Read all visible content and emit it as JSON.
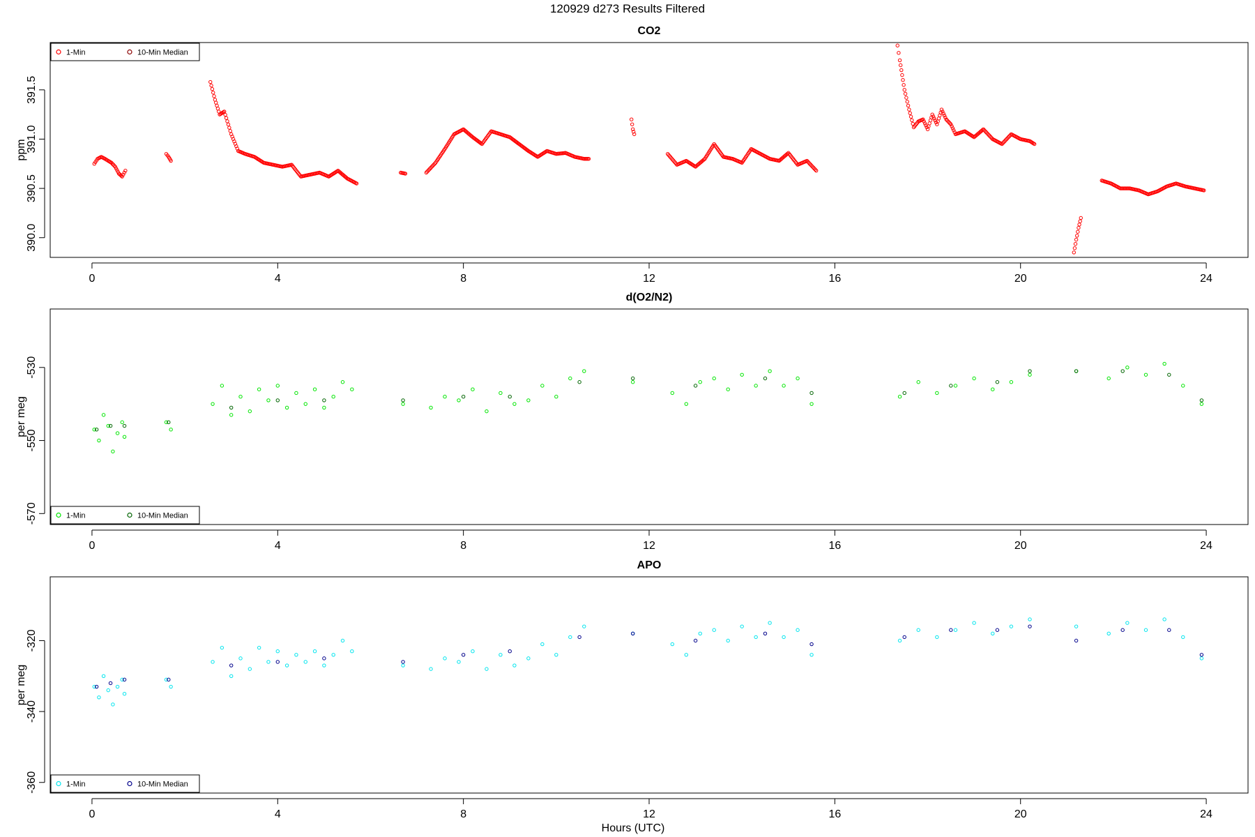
{
  "page_title": "120929   d273   Results Filtered",
  "x_axis_label": "Hours (UTC)",
  "colors": {
    "co2_raw": "#ff0000",
    "co2_median": "#8b0000",
    "o2_raw": "#00e600",
    "o2_median": "#006400",
    "apo_raw": "#00e5ee",
    "apo_median": "#00008b"
  },
  "chart_data": [
    {
      "type": "scatter",
      "title": "CO2",
      "ylabel": "ppm",
      "xlabel": "",
      "xlim": [
        -0.9,
        24.9
      ],
      "ylim": [
        389.8,
        391.98
      ],
      "xticks": [
        0,
        4,
        8,
        12,
        16,
        20,
        24
      ],
      "xtick_labels": [
        "0",
        "4",
        "8",
        "12",
        "16",
        "20",
        "24"
      ],
      "yticks": [
        390.0,
        390.5,
        391.0,
        391.5
      ],
      "ytick_labels": [
        "390.0",
        "390.5",
        "391.0",
        "391.5"
      ],
      "grid": false,
      "legend": {
        "position": "top-left",
        "entries": [
          "1-Min",
          "10-Min Median"
        ]
      },
      "series": [
        {
          "name": "1-Min",
          "segments": [
            {
              "x": [
                0.05,
                0.12,
                0.2,
                0.28,
                0.35,
                0.42,
                0.5,
                0.58,
                0.65,
                0.72
              ],
              "y": [
                390.75,
                390.8,
                390.82,
                390.8,
                390.78,
                390.76,
                390.72,
                390.65,
                390.62,
                390.68
              ]
            },
            {
              "x": [
                1.6,
                1.65,
                1.7
              ],
              "y": [
                390.85,
                390.82,
                390.78
              ]
            },
            {
              "x": [
                2.55,
                2.65,
                2.75,
                2.85,
                3.0,
                3.15,
                3.3,
                3.5,
                3.7,
                3.9,
                4.1,
                4.3,
                4.5,
                4.7,
                4.9,
                5.1,
                5.3,
                5.5,
                5.7
              ],
              "y": [
                391.58,
                391.4,
                391.25,
                391.28,
                391.05,
                390.88,
                390.85,
                390.82,
                390.76,
                390.74,
                390.72,
                390.74,
                390.62,
                390.64,
                390.66,
                390.62,
                390.68,
                390.6,
                390.55
              ]
            },
            {
              "x": [
                6.65,
                6.75
              ],
              "y": [
                390.66,
                390.65
              ]
            },
            {
              "x": [
                7.2,
                7.4,
                7.6,
                7.8,
                8.0,
                8.2,
                8.4,
                8.6,
                8.8,
                9.0,
                9.2,
                9.4,
                9.6,
                9.8,
                10.0,
                10.2,
                10.4,
                10.6,
                10.7
              ],
              "y": [
                390.66,
                390.76,
                390.9,
                391.05,
                391.1,
                391.02,
                390.95,
                391.08,
                391.05,
                391.02,
                390.95,
                390.88,
                390.82,
                390.88,
                390.85,
                390.86,
                390.82,
                390.8,
                390.8
              ]
            },
            {
              "x": [
                11.62,
                11.65,
                11.68
              ],
              "y": [
                391.2,
                391.1,
                391.05
              ]
            },
            {
              "x": [
                12.4,
                12.6,
                12.8,
                13.0,
                13.2,
                13.4,
                13.6,
                13.8,
                14.0,
                14.2,
                14.4,
                14.6,
                14.8,
                15.0,
                15.2,
                15.4,
                15.6
              ],
              "y": [
                390.85,
                390.74,
                390.78,
                390.72,
                390.8,
                390.95,
                390.82,
                390.8,
                390.76,
                390.9,
                390.85,
                390.8,
                390.78,
                390.86,
                390.74,
                390.78,
                390.68
              ]
            },
            {
              "x": [
                17.35,
                17.4,
                17.45,
                17.5,
                17.6,
                17.7,
                17.8,
                17.9,
                18.0,
                18.1,
                18.2,
                18.3,
                18.4,
                18.5,
                18.6,
                18.8,
                19.0,
                19.2,
                19.4,
                19.6,
                19.8,
                20.0,
                20.2,
                20.3
              ],
              "y": [
                391.95,
                391.8,
                391.65,
                391.5,
                391.3,
                391.12,
                391.18,
                391.2,
                391.1,
                391.25,
                391.15,
                391.3,
                391.2,
                391.15,
                391.05,
                391.08,
                391.02,
                391.1,
                391.0,
                390.95,
                391.05,
                391.0,
                390.98,
                390.95
              ]
            },
            {
              "x": [
                21.15,
                21.2,
                21.25,
                21.3
              ],
              "y": [
                389.85,
                389.98,
                390.1,
                390.2
              ]
            },
            {
              "x": [
                21.75,
                21.95,
                22.15,
                22.35,
                22.55,
                22.75,
                22.95,
                23.15,
                23.35,
                23.55,
                23.75,
                23.95
              ],
              "y": [
                390.58,
                390.55,
                390.5,
                390.5,
                390.48,
                390.44,
                390.47,
                390.52,
                390.55,
                390.52,
                390.5,
                390.48
              ]
            }
          ]
        },
        {
          "name": "10-Min Median",
          "x": [],
          "y": []
        }
      ]
    },
    {
      "type": "scatter",
      "title": "d(O2/N2)",
      "ylabel": "per meg",
      "xlabel": "",
      "xlim": [
        -0.9,
        24.9
      ],
      "ylim": [
        -573,
        -514
      ],
      "xticks": [
        0,
        4,
        8,
        12,
        16,
        20,
        24
      ],
      "xtick_labels": [
        "0",
        "4",
        "8",
        "12",
        "16",
        "20",
        "24"
      ],
      "yticks": [
        -570,
        -550,
        -530
      ],
      "ytick_labels": [
        "-570",
        "-550",
        "-530"
      ],
      "grid": false,
      "legend": {
        "position": "bottom-left",
        "entries": [
          "1-Min",
          "10-Min Median"
        ]
      },
      "series": [
        {
          "name": "1-Min",
          "x": [
            0.05,
            0.15,
            0.25,
            0.35,
            0.45,
            0.55,
            0.65,
            0.7,
            1.6,
            1.7,
            2.6,
            2.8,
            3.0,
            3.2,
            3.4,
            3.6,
            3.8,
            4.0,
            4.2,
            4.4,
            4.6,
            4.8,
            5.0,
            5.2,
            5.4,
            5.6,
            6.7,
            7.3,
            7.6,
            7.9,
            8.2,
            8.5,
            8.8,
            9.1,
            9.4,
            9.7,
            10.0,
            10.3,
            10.6,
            11.65,
            12.5,
            12.8,
            13.1,
            13.4,
            13.7,
            14.0,
            14.3,
            14.6,
            14.9,
            15.2,
            15.5,
            17.4,
            17.8,
            18.2,
            18.6,
            19.0,
            19.4,
            19.8,
            20.2,
            21.2,
            21.9,
            22.3,
            22.7,
            23.1,
            23.5,
            23.9
          ],
          "y": [
            -547,
            -550,
            -543,
            -546,
            -553,
            -548,
            -545,
            -549,
            -545,
            -547,
            -540,
            -535,
            -543,
            -538,
            -542,
            -536,
            -539,
            -535,
            -541,
            -537,
            -540,
            -536,
            -541,
            -538,
            -534,
            -536,
            -540,
            -541,
            -538,
            -539,
            -536,
            -542,
            -537,
            -540,
            -539,
            -535,
            -538,
            -533,
            -531,
            -534,
            -537,
            -540,
            -534,
            -533,
            -536,
            -532,
            -535,
            -531,
            -535,
            -533,
            -540,
            -538,
            -534,
            -537,
            -535,
            -533,
            -536,
            -534,
            -532,
            -531,
            -533,
            -530,
            -532,
            -529,
            -535,
            -540
          ]
        },
        {
          "name": "10-Min Median",
          "x": [
            0.1,
            0.4,
            0.7,
            1.65,
            3.0,
            4.0,
            5.0,
            6.7,
            8.0,
            9.0,
            10.5,
            11.65,
            13.0,
            14.5,
            15.5,
            17.5,
            18.5,
            19.5,
            20.2,
            21.2,
            22.2,
            23.2,
            23.9
          ],
          "y": [
            -547,
            -546,
            -546,
            -545,
            -541,
            -539,
            -539,
            -539,
            -538,
            -538,
            -534,
            -533,
            -535,
            -533,
            -537,
            -537,
            -535,
            -534,
            -531,
            -531,
            -531,
            -532,
            -539
          ]
        }
      ]
    },
    {
      "type": "scatter",
      "title": "APO",
      "ylabel": "per meg",
      "xlabel": "Hours (UTC)",
      "xlim": [
        -0.9,
        24.9
      ],
      "ylim": [
        -363,
        -302
      ],
      "xticks": [
        0,
        4,
        8,
        12,
        16,
        20,
        24
      ],
      "xtick_labels": [
        "0",
        "4",
        "8",
        "12",
        "16",
        "20",
        "24"
      ],
      "yticks": [
        -360,
        -340,
        -320
      ],
      "ytick_labels": [
        "-360",
        "-340",
        "-320"
      ],
      "grid": false,
      "legend": {
        "position": "bottom-left",
        "entries": [
          "1-Min",
          "10-Min Median"
        ]
      },
      "series": [
        {
          "name": "1-Min",
          "x": [
            0.05,
            0.15,
            0.25,
            0.35,
            0.45,
            0.55,
            0.65,
            0.7,
            1.6,
            1.7,
            2.6,
            2.8,
            3.0,
            3.2,
            3.4,
            3.6,
            3.8,
            4.0,
            4.2,
            4.4,
            4.6,
            4.8,
            5.0,
            5.2,
            5.4,
            5.6,
            6.7,
            7.3,
            7.6,
            7.9,
            8.2,
            8.5,
            8.8,
            9.1,
            9.4,
            9.7,
            10.0,
            10.3,
            10.6,
            11.65,
            12.5,
            12.8,
            13.1,
            13.4,
            13.7,
            14.0,
            14.3,
            14.6,
            14.9,
            15.2,
            15.5,
            17.4,
            17.8,
            18.2,
            18.6,
            19.0,
            19.4,
            19.8,
            20.2,
            21.2,
            21.9,
            22.3,
            22.7,
            23.1,
            23.5,
            23.9
          ],
          "y": [
            -333,
            -336,
            -330,
            -334,
            -338,
            -333,
            -331,
            -335,
            -331,
            -333,
            -326,
            -322,
            -330,
            -325,
            -328,
            -322,
            -326,
            -323,
            -327,
            -324,
            -326,
            -323,
            -327,
            -324,
            -320,
            -323,
            -327,
            -328,
            -325,
            -326,
            -323,
            -328,
            -324,
            -327,
            -325,
            -321,
            -324,
            -319,
            -316,
            -318,
            -321,
            -324,
            -318,
            -317,
            -320,
            -316,
            -319,
            -315,
            -319,
            -317,
            -324,
            -320,
            -317,
            -319,
            -317,
            -315,
            -318,
            -316,
            -314,
            -316,
            -318,
            -315,
            -317,
            -314,
            -319,
            -325
          ]
        },
        {
          "name": "10-Min Median",
          "x": [
            0.1,
            0.4,
            0.7,
            1.65,
            3.0,
            4.0,
            5.0,
            6.7,
            8.0,
            9.0,
            10.5,
            11.65,
            13.0,
            14.5,
            15.5,
            17.5,
            18.5,
            19.5,
            20.2,
            21.2,
            22.2,
            23.2,
            23.9
          ],
          "y": [
            -333,
            -332,
            -331,
            -331,
            -327,
            -326,
            -325,
            -326,
            -324,
            -323,
            -319,
            -318,
            -320,
            -318,
            -321,
            -319,
            -317,
            -317,
            -316,
            -320,
            -317,
            -317,
            -324
          ]
        }
      ]
    }
  ]
}
